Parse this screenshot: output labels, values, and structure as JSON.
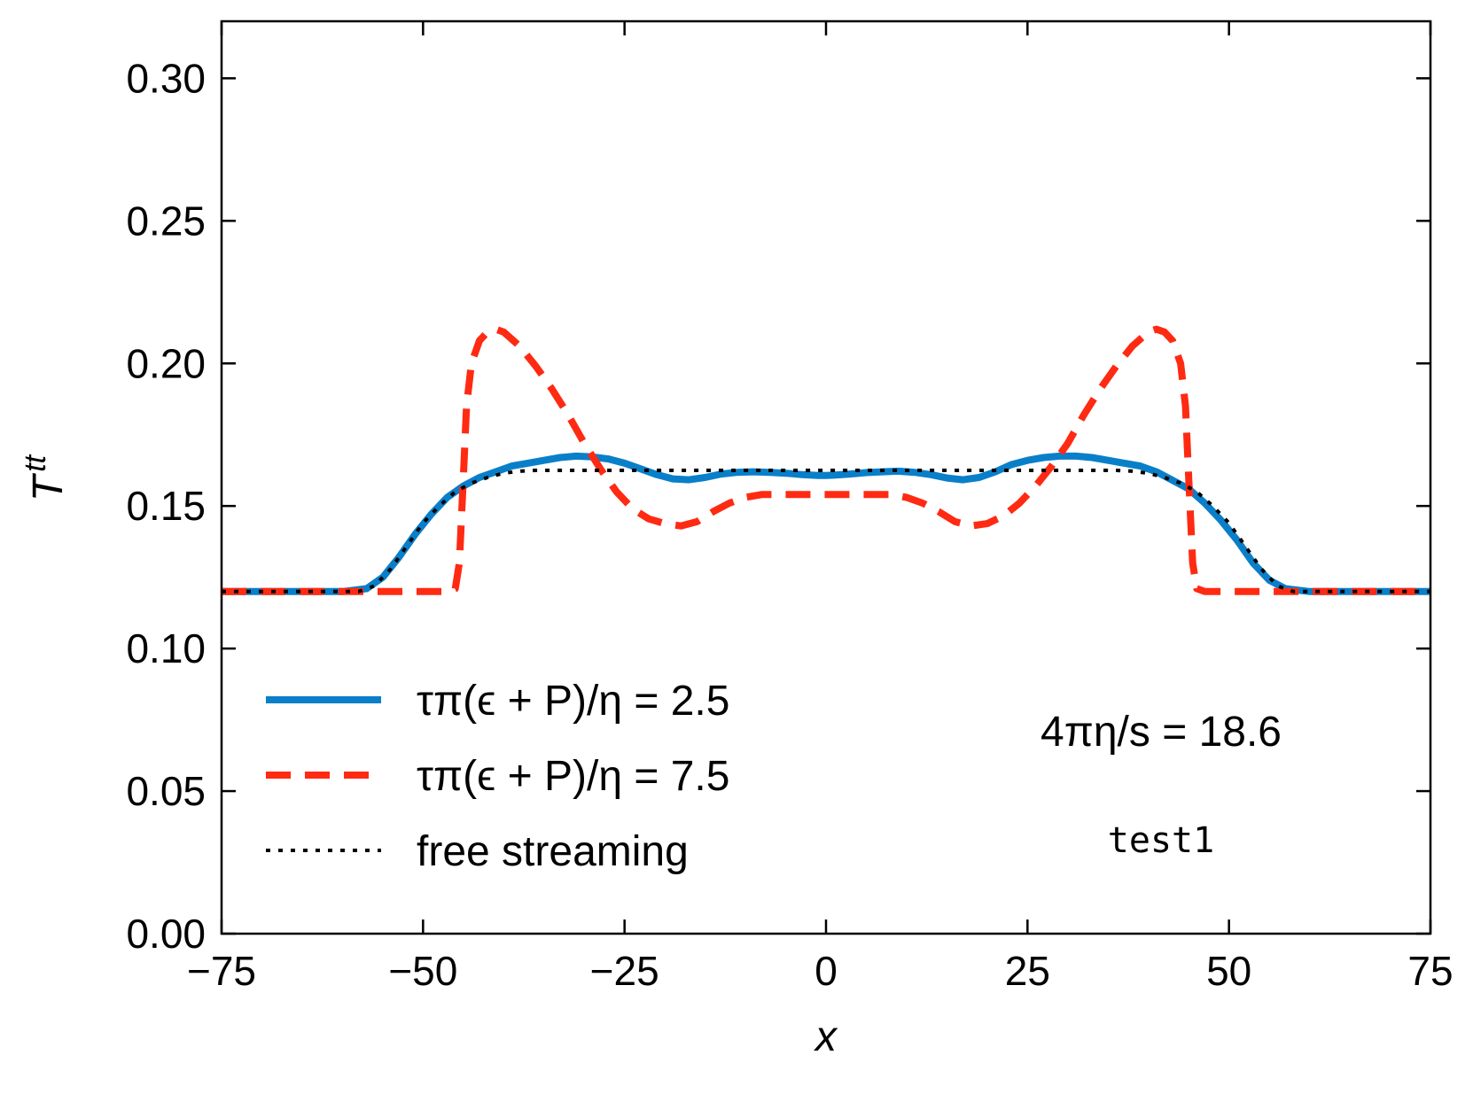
{
  "chart_data": {
    "type": "line",
    "title": "",
    "xlabel": "x",
    "ylabel": "T^tt",
    "xlim": [
      -75,
      75
    ],
    "ylim": [
      0.0,
      0.32
    ],
    "xticks": [
      -75,
      -50,
      -25,
      0,
      25,
      50,
      75
    ],
    "xtick_labels": [
      "−75",
      "−50",
      "−25",
      "0",
      "25",
      "50",
      "75"
    ],
    "yticks": [
      0.0,
      0.05,
      0.1,
      0.15,
      0.2,
      0.25,
      0.3
    ],
    "ytick_labels": [
      "0.00",
      "0.05",
      "0.10",
      "0.15",
      "0.20",
      "0.25",
      "0.30"
    ],
    "grid": false,
    "legend_position": "lower-left",
    "series": [
      {
        "name": "τπ(ϵ + P)/η = 2.5",
        "color": "#0a7fc9",
        "style": "solid",
        "x": [
          -75,
          -60,
          -57,
          -55,
          -53,
          -51,
          -49,
          -47,
          -45,
          -43,
          -41,
          -39,
          -37,
          -35,
          -33,
          -31,
          -29,
          -27,
          -25,
          -23,
          -21,
          -19,
          -17,
          -15,
          -13,
          -11,
          -9,
          -7,
          -5,
          -3,
          -1,
          0,
          1,
          3,
          5,
          7,
          9,
          11,
          13,
          15,
          17,
          19,
          21,
          23,
          25,
          27,
          29,
          31,
          33,
          35,
          37,
          39,
          41,
          43,
          45,
          47,
          49,
          51,
          53,
          55,
          57,
          60,
          75
        ],
        "y": [
          0.12,
          0.12,
          0.121,
          0.125,
          0.132,
          0.14,
          0.147,
          0.153,
          0.157,
          0.16,
          0.162,
          0.164,
          0.165,
          0.166,
          0.167,
          0.1675,
          0.1672,
          0.1665,
          0.165,
          0.163,
          0.161,
          0.1595,
          0.1592,
          0.16,
          0.1612,
          0.1618,
          0.162,
          0.1618,
          0.1615,
          0.161,
          0.1607,
          0.1607,
          0.1608,
          0.1612,
          0.1617,
          0.162,
          0.1622,
          0.1618,
          0.161,
          0.1598,
          0.1592,
          0.16,
          0.162,
          0.1645,
          0.166,
          0.167,
          0.1675,
          0.1675,
          0.167,
          0.166,
          0.165,
          0.164,
          0.162,
          0.159,
          0.156,
          0.151,
          0.145,
          0.138,
          0.13,
          0.124,
          0.121,
          0.12,
          0.12
        ]
      },
      {
        "name": "τπ(ϵ + P)/η = 7.5",
        "color": "#ff2a12",
        "style": "dashed",
        "x": [
          -75,
          -50,
          -47,
          -46,
          -45.5,
          -45,
          -44.6,
          -44,
          -43,
          -42,
          -41,
          -40,
          -38,
          -36,
          -34,
          -32,
          -30,
          -28,
          -26,
          -24,
          -22,
          -20,
          -18,
          -16,
          -14,
          -12,
          -10,
          -8,
          -6,
          -4,
          -2,
          0,
          2,
          4,
          6,
          8,
          10,
          12,
          14,
          16,
          18,
          20,
          22,
          24,
          26,
          28,
          30,
          32,
          34,
          36,
          38,
          40,
          41,
          42,
          43,
          44,
          44.6,
          45,
          45.5,
          46,
          47,
          50,
          60,
          75
        ],
        "y": [
          0.12,
          0.12,
          0.12,
          0.121,
          0.13,
          0.16,
          0.185,
          0.2,
          0.208,
          0.211,
          0.212,
          0.211,
          0.206,
          0.199,
          0.191,
          0.182,
          0.172,
          0.163,
          0.155,
          0.149,
          0.1455,
          0.1438,
          0.143,
          0.1445,
          0.148,
          0.151,
          0.153,
          0.154,
          0.154,
          0.154,
          0.154,
          0.154,
          0.154,
          0.154,
          0.154,
          0.154,
          0.153,
          0.151,
          0.148,
          0.1445,
          0.143,
          0.1438,
          0.1465,
          0.151,
          0.157,
          0.164,
          0.172,
          0.182,
          0.191,
          0.199,
          0.206,
          0.211,
          0.212,
          0.211,
          0.208,
          0.2,
          0.185,
          0.16,
          0.13,
          0.121,
          0.12,
          0.12,
          0.12,
          0.12
        ]
      },
      {
        "name": "free streaming",
        "color": "#000000",
        "style": "dotted",
        "x": [
          -75,
          -58,
          -56,
          -54,
          -52,
          -50,
          -48,
          -46,
          -44,
          -42,
          -40,
          -38,
          -36,
          -34,
          34,
          36,
          38,
          40,
          42,
          44,
          46,
          48,
          50,
          52,
          54,
          56,
          58,
          75
        ],
        "y": [
          0.12,
          0.12,
          0.122,
          0.128,
          0.136,
          0.144,
          0.15,
          0.155,
          0.158,
          0.16,
          0.1615,
          0.1622,
          0.1625,
          0.1625,
          0.1625,
          0.1625,
          0.1622,
          0.1615,
          0.16,
          0.158,
          0.155,
          0.15,
          0.144,
          0.136,
          0.128,
          0.122,
          0.12,
          0.12
        ]
      }
    ],
    "annotations": {
      "viscosity": "4πη/s = 18.6",
      "test_name": "test1"
    }
  }
}
